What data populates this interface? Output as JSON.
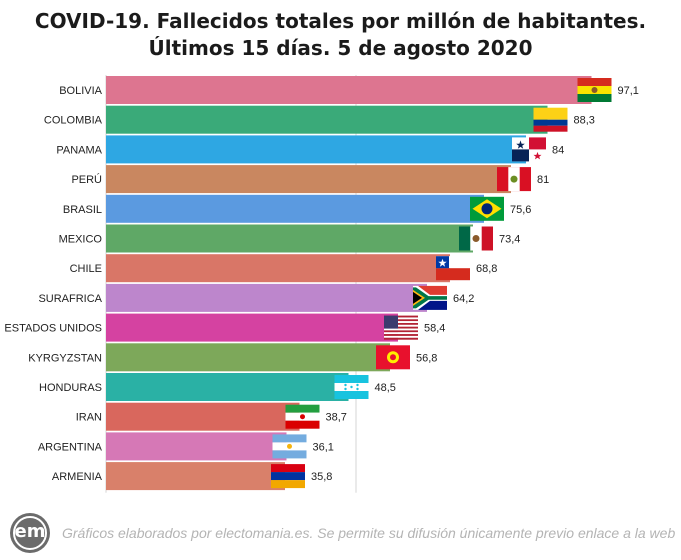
{
  "title": "COVID-19. Fallecidos totales por millón de habitantes. Últimos 15 días. 5 de agosto 2020",
  "footer": {
    "logo_text": "em",
    "credit": "Gráficos elaborados por electomania.es. Se permite su difusión únicamente previo enlace a la web"
  },
  "chart_data": {
    "type": "bar",
    "orientation": "horizontal",
    "title": "COVID-19. Fallecidos totales por millón de habitantes. Últimos 15 días. 5 de agosto 2020",
    "xlim": [
      0,
      100
    ],
    "grid": true,
    "categories": [
      "BOLIVIA",
      "COLOMBIA",
      "PANAMA",
      "PERÚ",
      "BRASIL",
      "MEXICO",
      "CHILE",
      "SURAFRICA",
      "ESTADOS UNIDOS",
      "KYRGYZSTAN",
      "HONDURAS",
      "IRAN",
      "ARGENTINA",
      "ARMENIA"
    ],
    "values": [
      97.1,
      88.3,
      84,
      81,
      75.6,
      73.4,
      68.8,
      64.2,
      58.4,
      56.8,
      48.5,
      38.7,
      36.1,
      35.8
    ],
    "value_labels": [
      "97,1",
      "88,3",
      "84",
      "81",
      "75,6",
      "73,4",
      "68,8",
      "64,2",
      "58,4",
      "56,8",
      "48,5",
      "38,7",
      "36,1",
      "35,8"
    ],
    "colors": [
      "#dd7590",
      "#3aaa79",
      "#2ea7e3",
      "#c98760",
      "#5b9ae0",
      "#5fa866",
      "#d97667",
      "#bd86cc",
      "#d542a1",
      "#7da85a",
      "#2ab1a5",
      "#d9675d",
      "#d678b6",
      "#d9806a"
    ],
    "flags": [
      "bolivia-flag",
      "colombia-flag",
      "panama-flag",
      "peru-flag",
      "brazil-flag",
      "mexico-flag",
      "chile-flag",
      "south-africa-flag",
      "usa-flag",
      "kyrgyzstan-flag",
      "honduras-flag",
      "iran-flag",
      "argentina-flag",
      "armenia-flag"
    ]
  }
}
